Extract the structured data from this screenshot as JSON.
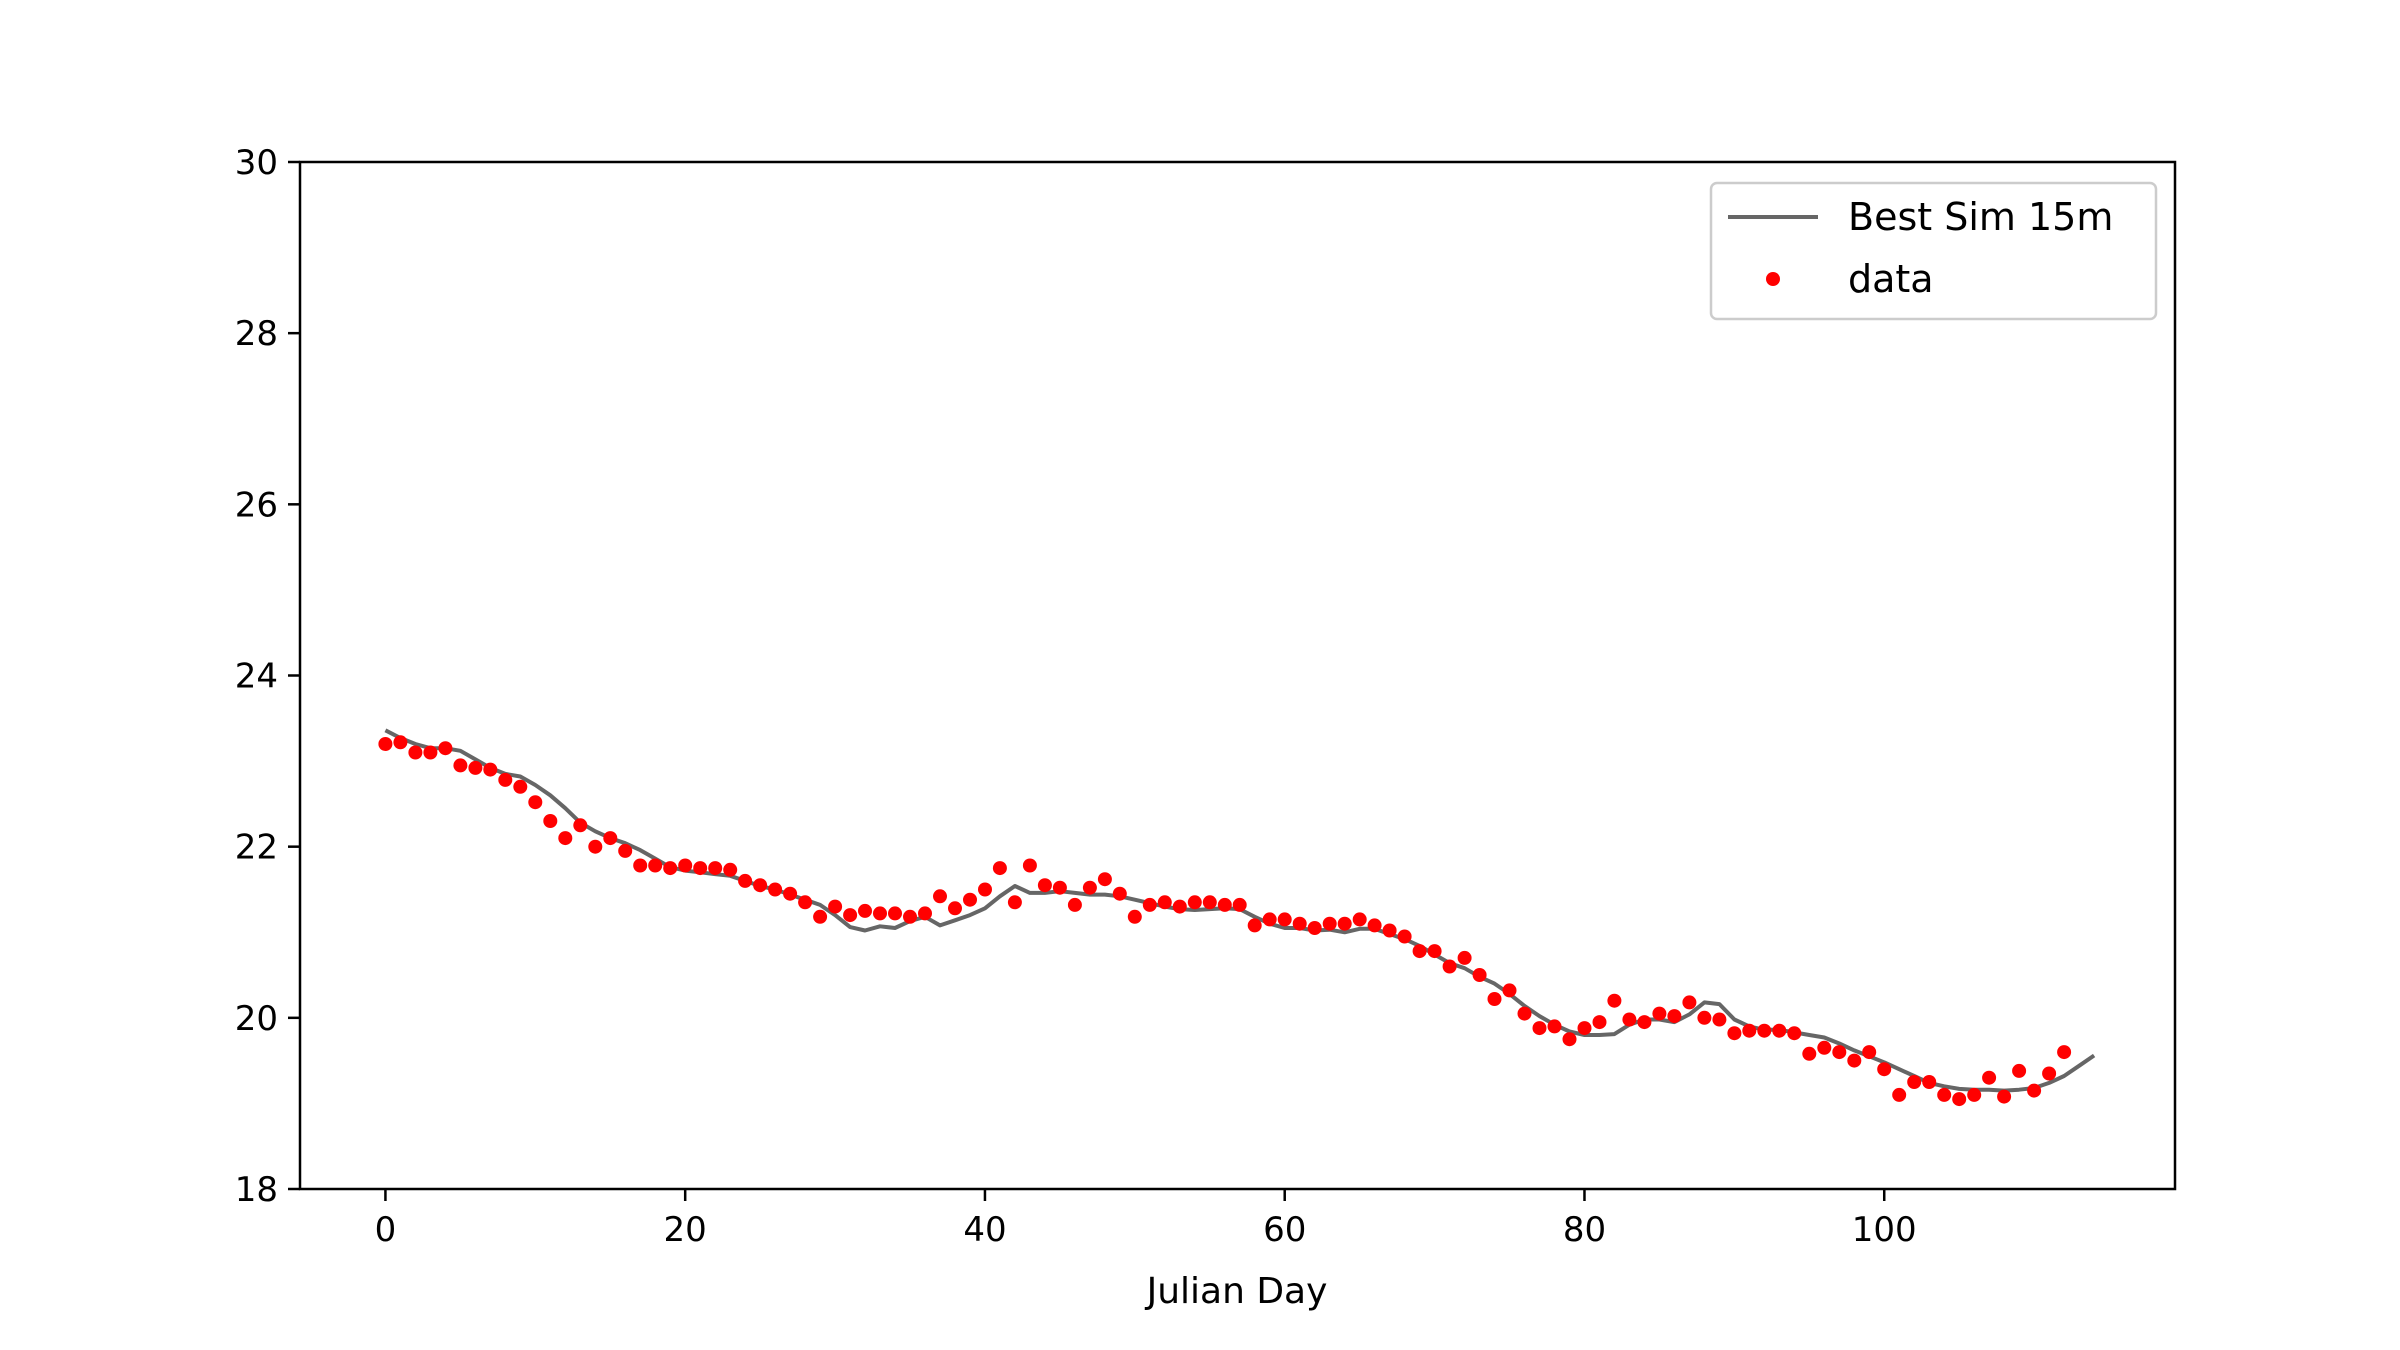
{
  "chart_data": {
    "type": "line",
    "title": "",
    "xlabel": "Julian Day",
    "ylabel": "",
    "xlim": [
      -5.7,
      119.4
    ],
    "ylim": [
      18,
      30
    ],
    "xticks": [
      0,
      20,
      40,
      60,
      80,
      100
    ],
    "yticks": [
      18,
      20,
      22,
      24,
      26,
      28,
      30
    ],
    "grid": false,
    "legend_position": "top-right",
    "colors": {
      "sim": "#666666",
      "data": "#ff0000",
      "axes": "#000000",
      "legend_border": "#cccccc"
    },
    "series": [
      {
        "name": "Best Sim 15m",
        "kind": "line",
        "x": [
          0,
          1,
          2,
          3,
          4,
          5,
          6,
          7,
          8,
          9,
          10,
          11,
          12,
          13,
          14,
          15,
          16,
          17,
          18,
          19,
          20,
          21,
          22,
          23,
          24,
          25,
          26,
          27,
          28,
          29,
          30,
          31,
          32,
          33,
          34,
          35,
          36,
          37,
          38,
          39,
          40,
          41,
          42,
          43,
          44,
          45,
          46,
          47,
          48,
          49,
          50,
          51,
          52,
          53,
          54,
          55,
          56,
          57,
          58,
          59,
          60,
          61,
          62,
          63,
          64,
          65,
          66,
          67,
          68,
          69,
          70,
          71,
          72,
          73,
          74,
          75,
          76,
          77,
          78,
          79,
          80,
          81,
          82,
          83,
          84,
          85,
          86,
          87,
          88,
          89,
          90,
          91,
          92,
          93,
          94,
          95,
          96,
          97,
          98,
          99,
          100,
          101,
          102,
          103,
          104,
          105,
          106,
          107,
          108,
          109,
          110,
          111,
          112,
          113,
          114
        ],
        "values": [
          23.36,
          23.27,
          23.2,
          23.15,
          23.15,
          23.12,
          23.02,
          22.92,
          22.85,
          22.82,
          22.72,
          22.6,
          22.45,
          22.28,
          22.18,
          22.1,
          22.04,
          21.96,
          21.86,
          21.76,
          21.72,
          21.7,
          21.68,
          21.66,
          21.6,
          21.54,
          21.5,
          21.44,
          21.38,
          21.32,
          21.2,
          21.06,
          21.02,
          21.07,
          21.05,
          21.13,
          21.18,
          21.08,
          21.14,
          21.2,
          21.28,
          21.42,
          21.54,
          21.46,
          21.46,
          21.48,
          21.46,
          21.44,
          21.44,
          21.42,
          21.38,
          21.34,
          21.3,
          21.27,
          21.26,
          21.27,
          21.28,
          21.27,
          21.18,
          21.1,
          21.05,
          21.05,
          21.02,
          21.03,
          21.0,
          21.04,
          21.04,
          20.98,
          20.92,
          20.84,
          20.74,
          20.64,
          20.58,
          20.48,
          20.4,
          20.28,
          20.14,
          20.02,
          19.92,
          19.84,
          19.8,
          19.8,
          19.81,
          19.92,
          19.98,
          19.98,
          19.95,
          20.04,
          20.18,
          20.16,
          19.98,
          19.9,
          19.86,
          19.86,
          19.83,
          19.8,
          19.77,
          19.7,
          19.62,
          19.55,
          19.48,
          19.4,
          19.32,
          19.24,
          19.2,
          19.17,
          19.16,
          19.16,
          19.15,
          19.16,
          19.18,
          19.24,
          19.32,
          19.44,
          19.56
        ]
      },
      {
        "name": "data",
        "kind": "scatter",
        "x": [
          0,
          1,
          2,
          3,
          4,
          5,
          6,
          7,
          8,
          9,
          10,
          11,
          12,
          13,
          14,
          15,
          16,
          17,
          18,
          19,
          20,
          21,
          22,
          23,
          24,
          25,
          26,
          27,
          28,
          29,
          30,
          31,
          32,
          33,
          34,
          35,
          36,
          37,
          38,
          39,
          40,
          41,
          42,
          43,
          44,
          45,
          46,
          47,
          48,
          49,
          50,
          51,
          52,
          53,
          54,
          55,
          56,
          57,
          58,
          59,
          60,
          61,
          62,
          63,
          64,
          65,
          66,
          67,
          68,
          69,
          70,
          71,
          72,
          73,
          74,
          75,
          76,
          77,
          78,
          79,
          80,
          81,
          82,
          83,
          84,
          85,
          86,
          87,
          88,
          89,
          90,
          91,
          92,
          93,
          94,
          95,
          96,
          97,
          98,
          99,
          100,
          101,
          102,
          103,
          104,
          105,
          106,
          107,
          108,
          109,
          110,
          111,
          112
        ],
        "values": [
          23.2,
          23.22,
          23.1,
          23.1,
          23.15,
          22.95,
          22.92,
          22.9,
          22.78,
          22.7,
          22.52,
          22.3,
          22.1,
          22.25,
          22.0,
          22.1,
          21.95,
          21.78,
          21.78,
          21.75,
          21.78,
          21.75,
          21.75,
          21.73,
          21.6,
          21.55,
          21.5,
          21.45,
          21.35,
          21.18,
          21.3,
          21.2,
          21.25,
          21.22,
          21.22,
          21.18,
          21.22,
          21.42,
          21.28,
          21.38,
          21.5,
          21.75,
          21.35,
          21.78,
          21.55,
          21.52,
          21.32,
          21.52,
          21.62,
          21.45,
          21.18,
          21.32,
          21.35,
          21.3,
          21.35,
          21.35,
          21.32,
          21.32,
          21.08,
          21.15,
          21.15,
          21.1,
          21.05,
          21.1,
          21.1,
          21.15,
          21.08,
          21.02,
          20.95,
          20.78,
          20.78,
          20.6,
          20.7,
          20.5,
          20.22,
          20.32,
          20.05,
          19.88,
          19.9,
          19.75,
          19.88,
          19.95,
          20.2,
          19.98,
          19.95,
          20.05,
          20.02,
          20.18,
          20.0,
          19.98,
          19.82,
          19.85,
          19.85,
          19.85,
          19.82,
          19.58,
          19.65,
          19.6,
          19.5,
          19.6,
          19.4,
          19.1,
          19.25,
          19.25,
          19.1,
          19.05,
          19.1,
          19.3,
          19.08,
          19.38,
          19.15,
          19.35,
          19.6
        ]
      }
    ]
  }
}
